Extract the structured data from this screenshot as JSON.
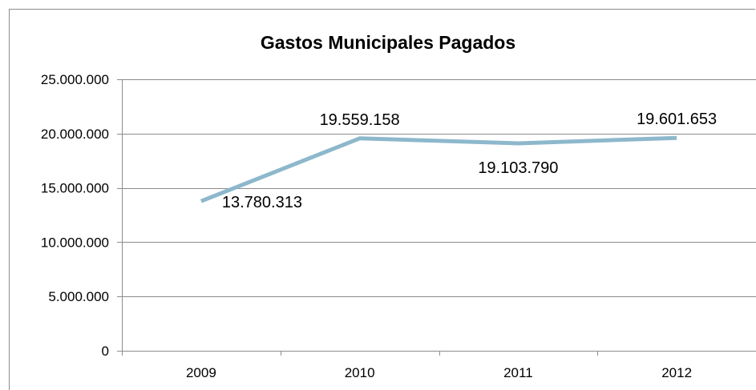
{
  "chart_data": {
    "type": "line",
    "title": "Gastos Municipales Pagados",
    "xlabel": "",
    "ylabel": "",
    "categories": [
      "2009",
      "2010",
      "2011",
      "2012"
    ],
    "series": [
      {
        "values": [
          13780313,
          19559158,
          19103790,
          19601653
        ],
        "data_labels": [
          "13.780.313",
          "19.559.158",
          "19.103.790",
          "19.601.653"
        ],
        "color": "#8db8cc"
      }
    ],
    "ylim": [
      0,
      25000000
    ],
    "y_ticks": [
      0,
      5000000,
      10000000,
      15000000,
      20000000,
      25000000
    ],
    "y_tick_labels": [
      "0",
      "5.000.000",
      "10.000.000",
      "15.000.000",
      "20.000.000",
      "25.000.000"
    ],
    "grid": true,
    "legend": "none",
    "colors": {
      "gridline": "#8c8c8c",
      "axis": "#8c8c8c",
      "frame": "#8c8c8c"
    }
  }
}
